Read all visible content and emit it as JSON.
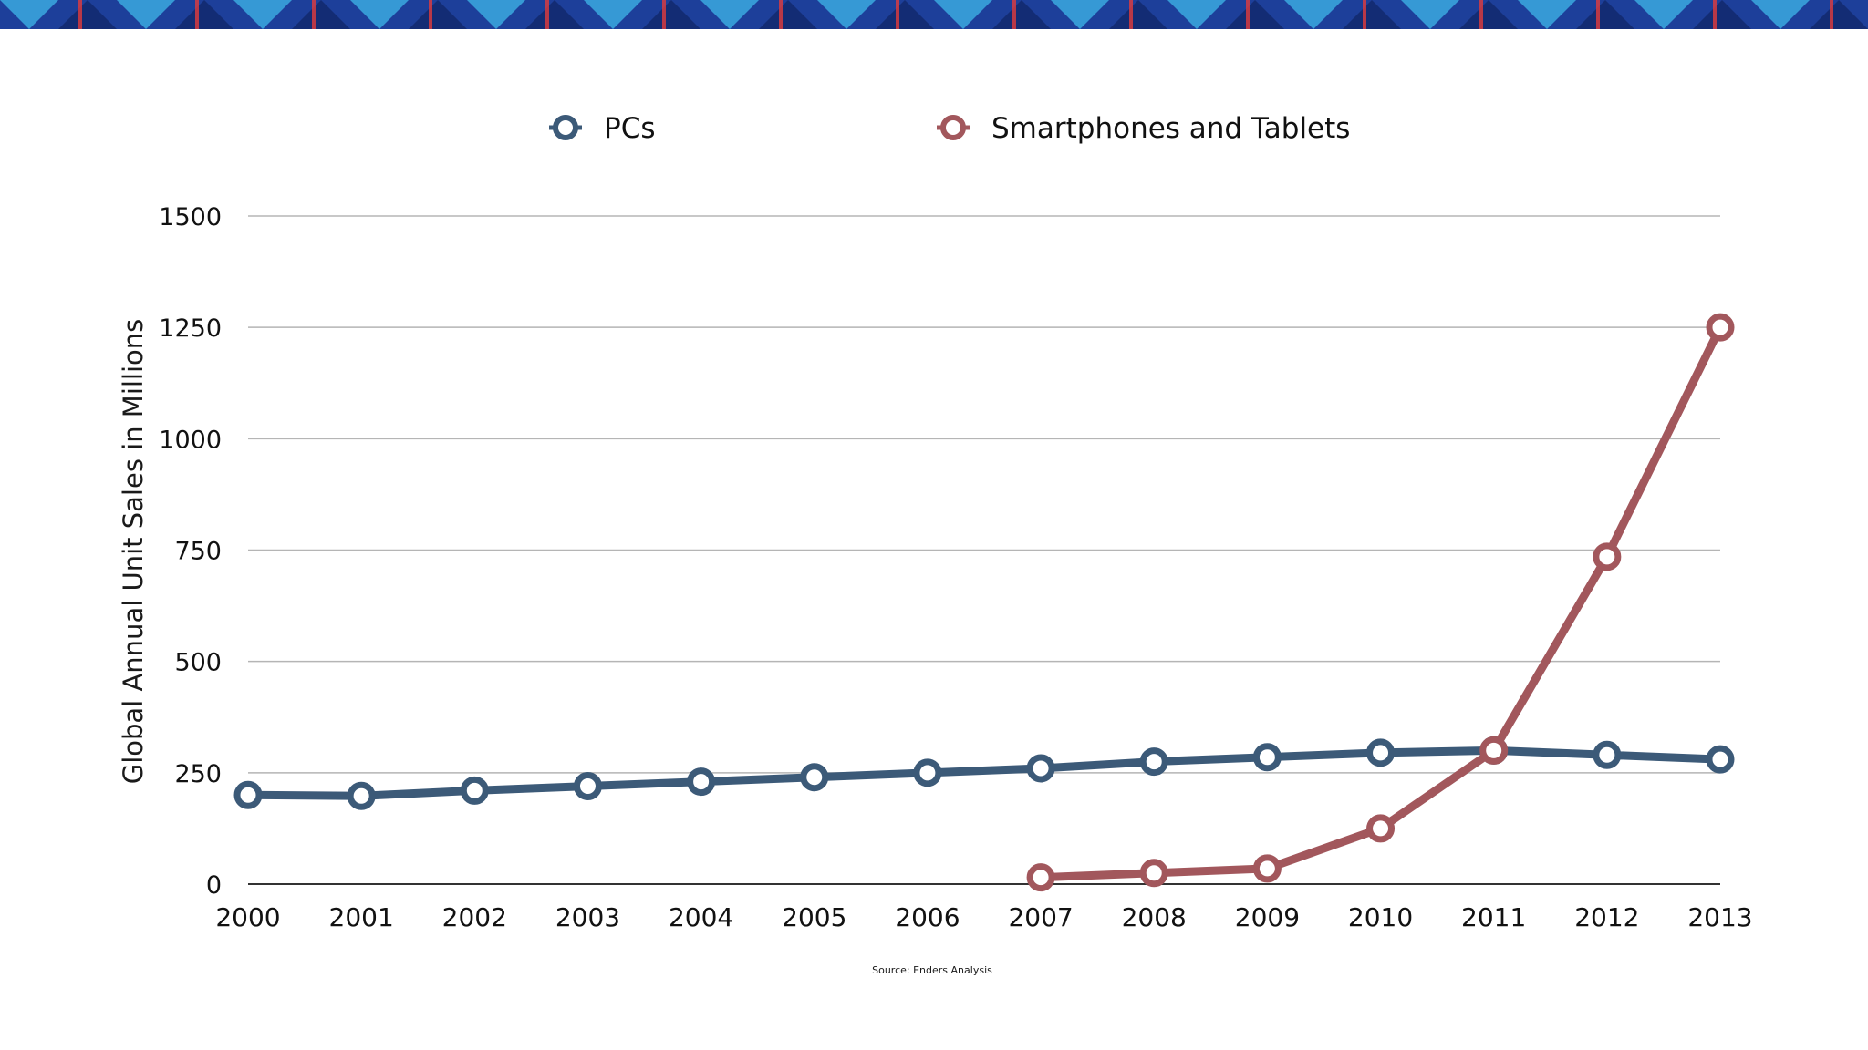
{
  "banner": {
    "colors": [
      "#1d3f9a",
      "#3fb8e8",
      "#e23c3c",
      "#0d1f5c"
    ]
  },
  "chart_data": {
    "type": "line",
    "title": "",
    "xlabel": "",
    "ylabel": "Global Annual Unit Sales in Millions",
    "source": "Source: Enders Analysis",
    "x": [
      2000,
      2001,
      2002,
      2003,
      2004,
      2005,
      2006,
      2007,
      2008,
      2009,
      2010,
      2011,
      2012,
      2013
    ],
    "ylim": [
      0,
      1500
    ],
    "yticks": [
      0,
      250,
      500,
      750,
      1000,
      1250,
      1500
    ],
    "grid": true,
    "legend_position": "top",
    "series": [
      {
        "name": "PCs",
        "color": "#3c5a78",
        "values": [
          200,
          198,
          210,
          220,
          230,
          240,
          250,
          260,
          275,
          285,
          295,
          300,
          290,
          280
        ]
      },
      {
        "name": "Smartphones and Tablets",
        "color": "#a2575c",
        "values": [
          null,
          null,
          null,
          null,
          null,
          null,
          null,
          15,
          25,
          35,
          125,
          300,
          735,
          1250
        ]
      }
    ]
  }
}
